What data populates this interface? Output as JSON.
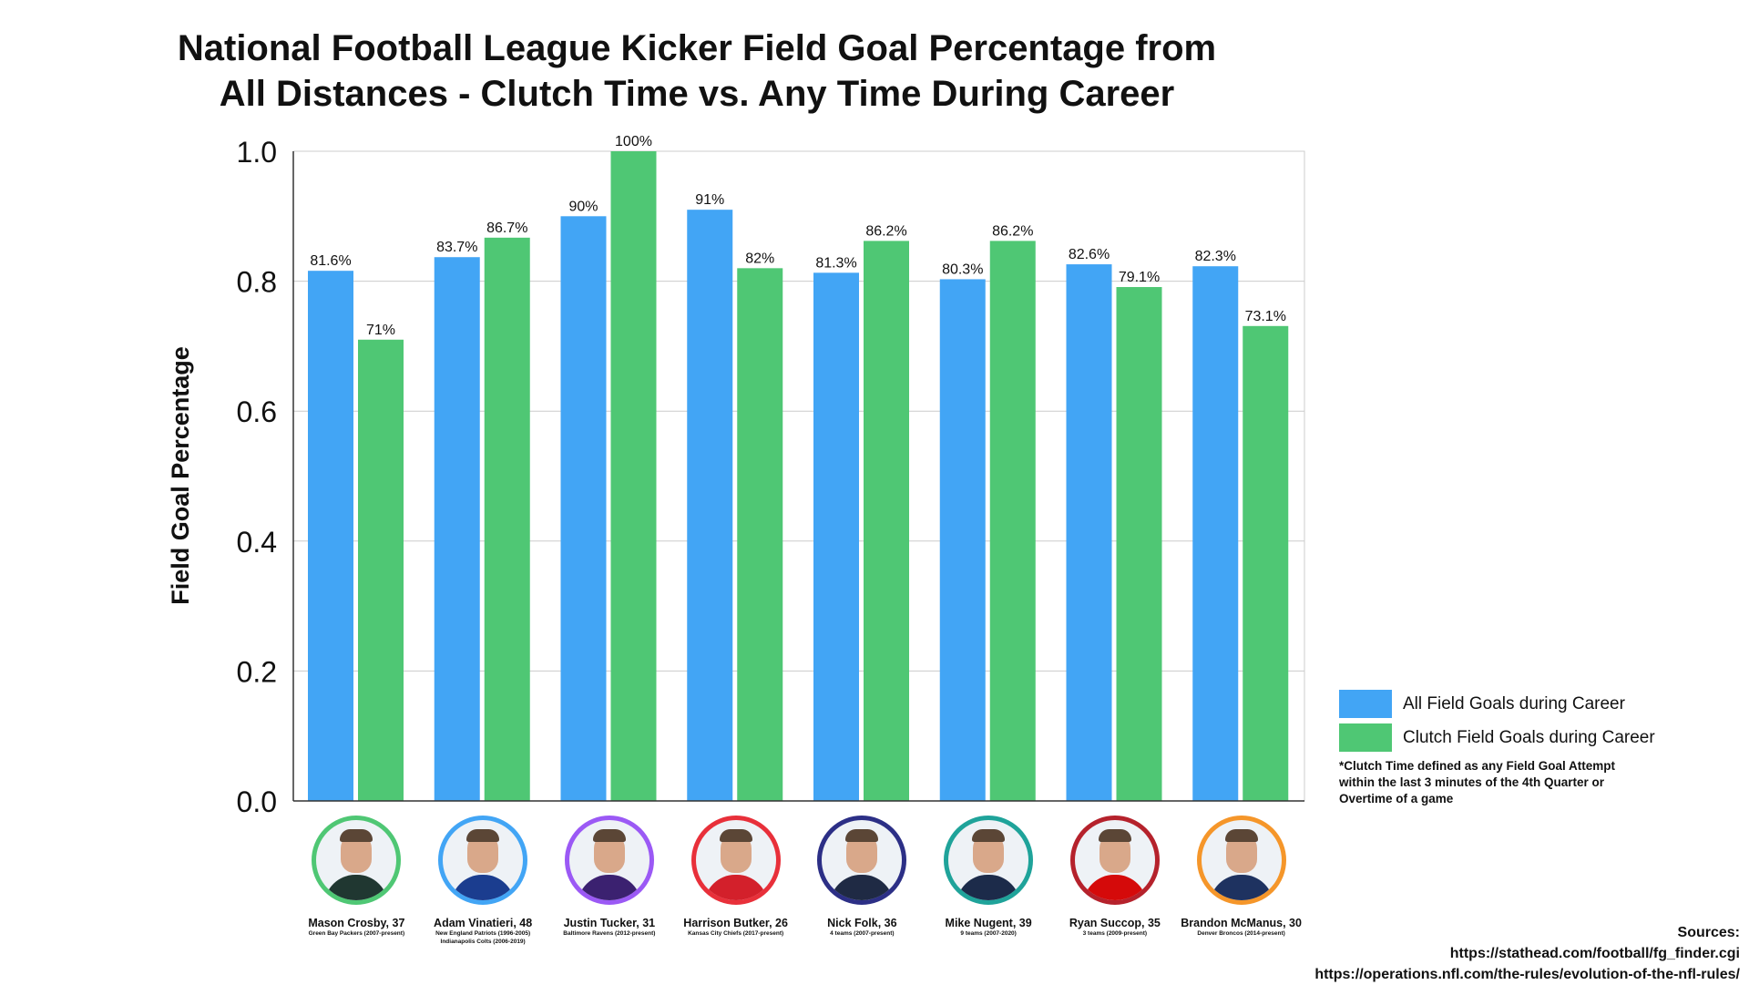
{
  "title_lines": [
    "National Football League Kicker Field Goal Percentage from",
    "All Distances - Clutch Time vs. Any Time During Career"
  ],
  "chart_data": {
    "type": "bar",
    "title": "National Football League Kicker Field Goal Percentage from All Distances - Clutch Time vs. Any Time During Career",
    "xlabel": "",
    "ylabel": "Field Goal Percentage",
    "ylim": [
      0,
      1.0
    ],
    "yticks": [
      "0.0",
      "0.2",
      "0.4",
      "0.6",
      "0.8",
      "1.0"
    ],
    "grid": true,
    "legend_position": "right",
    "categories": [
      "Mason Crosby, 37",
      "Adam Vinatieri, 48",
      "Justin Tucker, 31",
      "Harrison Butker, 26",
      "Nick Folk, 36",
      "Mike Nugent, 39",
      "Ryan Succop, 35",
      "Brandon McManus, 30"
    ],
    "series": [
      {
        "name": "All Field Goals during Career",
        "color": "#42a5f5",
        "values": [
          0.816,
          0.837,
          0.9,
          0.91,
          0.813,
          0.803,
          0.826,
          0.823
        ],
        "labels": [
          "81.6%",
          "83.7%",
          "90%",
          "91%",
          "81.3%",
          "80.3%",
          "82.6%",
          "82.3%"
        ]
      },
      {
        "name": "Clutch Field Goals during Career",
        "color": "#4fc774",
        "values": [
          0.71,
          0.867,
          1.0,
          0.82,
          0.862,
          0.862,
          0.791,
          0.731
        ],
        "labels": [
          "71%",
          "86.7%",
          "100%",
          "82%",
          "86.2%",
          "86.2%",
          "79.1%",
          "73.1%"
        ]
      }
    ]
  },
  "legend": {
    "items": [
      {
        "label": "All Field Goals during Career",
        "color": "#42a5f5"
      },
      {
        "label": "Clutch Field Goals during Career",
        "color": "#4fc774"
      }
    ],
    "note_lines": [
      "*Clutch Time defined as any Field Goal Attempt",
      "within the last 3 minutes of the 4th Quarter or",
      "Overtime of a game"
    ]
  },
  "players": [
    {
      "name": "Mason Crosby, 37",
      "team_lines": [
        "Green Bay Packers (2007-present)"
      ],
      "ring_color": "#4fc774",
      "jersey_color": "#203731"
    },
    {
      "name": "Adam Vinatieri, 48",
      "team_lines": [
        "New England Patriots (1996-2005)",
        "Indianapolis Colts (2006-2019)"
      ],
      "ring_color": "#42a5f5",
      "jersey_color": "#1b3d8f"
    },
    {
      "name": "Justin Tucker, 31",
      "team_lines": [
        "Baltimore Ravens (2012-present)"
      ],
      "ring_color": "#9b59f5",
      "jersey_color": "#3b2170"
    },
    {
      "name": "Harrison Butker, 26",
      "team_lines": [
        "Kansas City Chiefs (2017-present)"
      ],
      "ring_color": "#e8303a",
      "jersey_color": "#d3202b"
    },
    {
      "name": "Nick Folk, 36",
      "team_lines": [
        "4 teams (2007-present)"
      ],
      "ring_color": "#2c2f86",
      "jersey_color": "#1f2a44"
    },
    {
      "name": "Mike Nugent, 39",
      "team_lines": [
        "9 teams (2007-2020)"
      ],
      "ring_color": "#1fa39a",
      "jersey_color": "#1c2b4a"
    },
    {
      "name": "Ryan Succop, 35",
      "team_lines": [
        "3 teams (2009-present)"
      ],
      "ring_color": "#b5222c",
      "jersey_color": "#d50a0a"
    },
    {
      "name": "Brandon McManus, 30",
      "team_lines": [
        "Denver Broncos (2014-present)"
      ],
      "ring_color": "#f5962a",
      "jersey_color": "#1e3260"
    }
  ],
  "sources": {
    "heading": "Sources:",
    "lines": [
      "https://stathead.com/football/fg_finder.cgi",
      "https://operations.nfl.com/the-rules/evolution-of-the-nfl-rules/"
    ]
  }
}
